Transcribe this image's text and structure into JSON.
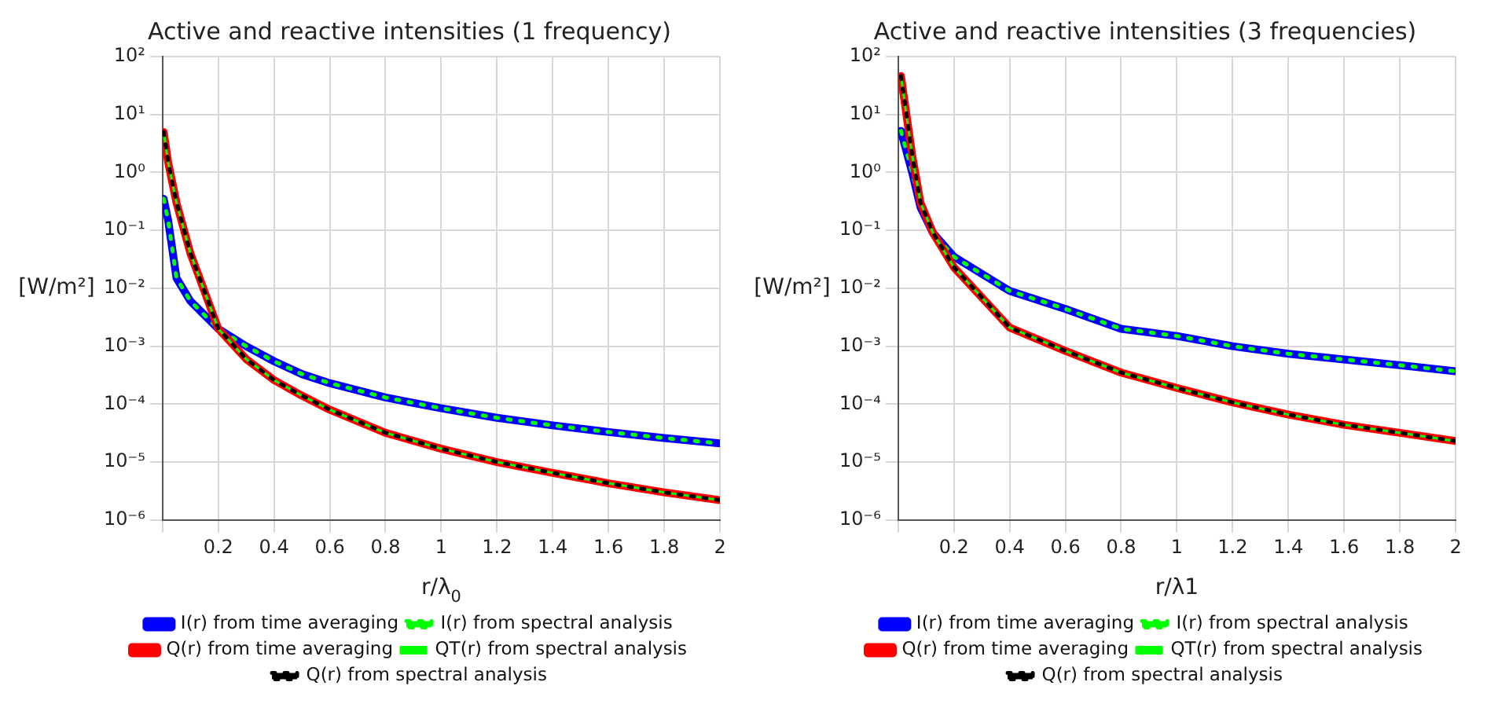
{
  "chart_data": [
    {
      "type": "line",
      "title": "Active and reactive intensities (1 frequency)",
      "xlabel": "r/λ$_{0}$",
      "ylabel": "[W/m²]",
      "log": "y",
      "grid": true,
      "legend": "bottom",
      "marker": "none",
      "xlim": [
        0,
        2
      ],
      "xticks": [
        {
          "value": 0,
          "label": null
        },
        0.2,
        0.4,
        0.6,
        0.8,
        1,
        1.2,
        1.4,
        1.6,
        1.8,
        2
      ],
      "ylim": [
        1e-06,
        100
      ],
      "yticks": [
        {
          "value": 1e-06,
          "label": "10⁻⁶"
        },
        {
          "value": 1e-05,
          "label": "10⁻⁵"
        },
        {
          "value": 0.0001,
          "label": "10⁻⁴"
        },
        {
          "value": 0.001,
          "label": "10⁻³"
        },
        {
          "value": 0.01,
          "label": "10⁻²"
        },
        {
          "value": 0.1,
          "label": "10⁻¹"
        },
        {
          "value": 1,
          "label": "10⁰"
        },
        {
          "value": 10,
          "label": "10¹"
        },
        {
          "value": 100,
          "label": "10²"
        }
      ],
      "x": [
        0.004,
        0.02,
        0.05,
        0.1,
        0.2,
        0.3,
        0.4,
        0.5,
        0.6,
        0.8,
        1,
        1.2,
        1.4,
        1.6,
        1.8,
        2
      ],
      "series": [
        {
          "name": "I(r) from time averaging",
          "color": "#0000ff",
          "line_style": "solid",
          "values": [
            0.35,
            0.15,
            0.015,
            0.006,
            0.002,
            0.001,
            0.00055,
            0.00033,
            0.00023,
            0.00013,
            8.5e-05,
            5.8e-05,
            4.3e-05,
            3.3e-05,
            2.6e-05,
            2.1e-05
          ]
        },
        {
          "name": "I(r) from spectral analysis",
          "color": "#00ff00",
          "line_style": "dotted",
          "values": [
            0.35,
            0.15,
            0.015,
            0.006,
            0.002,
            0.001,
            0.00055,
            0.00033,
            0.00023,
            0.00013,
            8.5e-05,
            5.8e-05,
            4.3e-05,
            3.3e-05,
            2.6e-05,
            2.1e-05
          ]
        },
        {
          "name": "Q(r) from time averaging",
          "color": "#ff0000",
          "line_style": "solid",
          "values": [
            5,
            1.5,
            0.3,
            0.04,
            0.002,
            0.0006,
            0.00026,
            0.00014,
            8e-05,
            3.2e-05,
            1.7e-05,
            1e-05,
            6.5e-06,
            4.3e-06,
            3e-06,
            2.2e-06
          ]
        },
        {
          "name": "QT(r) from spectral analysis",
          "color": "#00ff00",
          "line_style": "solid",
          "values": [
            5,
            1.5,
            0.3,
            0.04,
            0.002,
            0.0006,
            0.00026,
            0.00014,
            8e-05,
            3.2e-05,
            1.7e-05,
            1e-05,
            6.5e-06,
            4.3e-06,
            3e-06,
            2.2e-06
          ]
        },
        {
          "name": "Q(r) from spectral analysis",
          "color": "#000000",
          "line_style": "dotted",
          "values": [
            5,
            1.5,
            0.3,
            0.04,
            0.002,
            0.0006,
            0.00026,
            0.00014,
            8e-05,
            3.2e-05,
            1.7e-05,
            1e-05,
            6.5e-06,
            4.3e-06,
            3e-06,
            2.2e-06
          ]
        }
      ]
    },
    {
      "type": "line",
      "title": "Active and reactive intensities (3 frequencies)",
      "xlabel": "r/λ1",
      "ylabel": "[W/m²]",
      "log": "y",
      "grid": true,
      "legend": "bottom",
      "marker": "none",
      "xlim": [
        0,
        2
      ],
      "xticks": [
        {
          "value": 0,
          "label": null
        },
        0.2,
        0.4,
        0.6,
        0.8,
        1,
        1.2,
        1.4,
        1.6,
        1.8,
        2
      ],
      "ylim": [
        1e-06,
        100
      ],
      "yticks": [
        {
          "value": 1e-06,
          "label": "10⁻⁶"
        },
        {
          "value": 1e-05,
          "label": "10⁻⁵"
        },
        {
          "value": 0.0001,
          "label": "10⁻⁴"
        },
        {
          "value": 0.001,
          "label": "10⁻³"
        },
        {
          "value": 0.01,
          "label": "10⁻²"
        },
        {
          "value": 0.1,
          "label": "10⁻¹"
        },
        {
          "value": 1,
          "label": "10⁰"
        },
        {
          "value": 10,
          "label": "10¹"
        },
        {
          "value": 100,
          "label": "10²"
        }
      ],
      "x": [
        0.01,
        0.05,
        0.08,
        0.125,
        0.2,
        0.4,
        0.6,
        0.8,
        1,
        1.2,
        1.4,
        1.6,
        1.8,
        2
      ],
      "series": [
        {
          "name": "I(r) from time averaging",
          "color": "#0000ff",
          "line_style": "solid",
          "values": [
            5.2,
            1,
            0.25,
            0.09,
            0.035,
            0.009,
            0.0044,
            0.002,
            0.0015,
            0.001,
            0.00074,
            0.00059,
            0.00047,
            0.00037
          ]
        },
        {
          "name": "I(r) from spectral analysis",
          "color": "#00ff00",
          "line_style": "dotted",
          "values": [
            5.2,
            1,
            0.25,
            0.09,
            0.035,
            0.009,
            0.0044,
            0.002,
            0.0015,
            0.001,
            0.00074,
            0.00059,
            0.00047,
            0.00037
          ]
        },
        {
          "name": "Q(r) from time averaging",
          "color": "#ff0000",
          "line_style": "solid",
          "values": [
            46,
            2,
            0.3,
            0.09,
            0.023,
            0.0021,
            0.00083,
            0.00035,
            0.00019,
            0.000107,
            6.6e-05,
            4.4e-05,
            3.2e-05,
            2.3e-05
          ]
        },
        {
          "name": "QT(r) from spectral analysis",
          "color": "#00ff00",
          "line_style": "solid",
          "values": [
            46,
            2,
            0.3,
            0.09,
            0.023,
            0.0021,
            0.00083,
            0.00035,
            0.00019,
            0.000107,
            6.6e-05,
            4.4e-05,
            3.2e-05,
            2.3e-05
          ]
        },
        {
          "name": "Q(r) from spectral analysis",
          "color": "#000000",
          "line_style": "dotted",
          "values": [
            46,
            2,
            0.3,
            0.09,
            0.023,
            0.0021,
            0.00083,
            0.00035,
            0.00019,
            0.000107,
            6.6e-05,
            4.4e-05,
            3.2e-05,
            2.3e-05
          ]
        }
      ]
    }
  ]
}
